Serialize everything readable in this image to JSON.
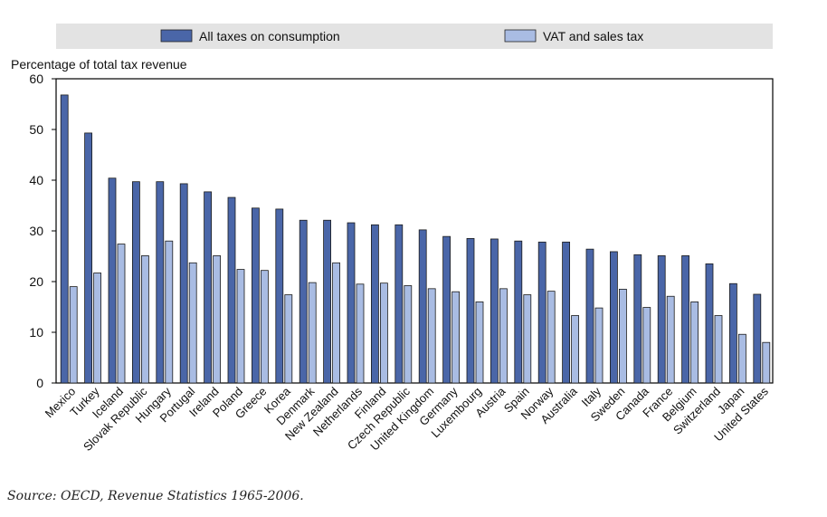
{
  "chart_data": {
    "type": "bar",
    "ylabel": "Percentage of total tax revenue",
    "ylim": [
      0,
      60
    ],
    "yticks": [
      0,
      10,
      20,
      30,
      40,
      50,
      60
    ],
    "grid": false,
    "legend_position": "top",
    "categories": [
      "Mexico",
      "Turkey",
      "Iceland",
      "Slovak Republic",
      "Hungary",
      "Portugal",
      "Ireland",
      "Poland",
      "Greece",
      "Korea",
      "Denmark",
      "New Zealand",
      "Netherlands",
      "Finland",
      "Czech Republic",
      "United Kingdom",
      "Germany",
      "Luxembourg",
      "Austria",
      "Spain",
      "Norway",
      "Australia",
      "Italy",
      "Sweden",
      "Canada",
      "France",
      "Belgium",
      "Switzerland",
      "Japan",
      "United States"
    ],
    "series": [
      {
        "name": "All taxes on consumption",
        "color": "#4a66a8",
        "values": [
          56.8,
          49.3,
          40.4,
          39.7,
          39.7,
          39.3,
          37.7,
          36.6,
          34.5,
          34.3,
          32.1,
          32.1,
          31.6,
          31.2,
          31.2,
          30.2,
          28.9,
          28.5,
          28.4,
          28.0,
          27.8,
          27.8,
          26.4,
          25.9,
          25.3,
          25.1,
          25.1,
          23.5,
          19.6,
          17.5
        ]
      },
      {
        "name": "VAT and sales tax",
        "color": "#a9bce3",
        "values": [
          19.0,
          21.7,
          27.4,
          25.1,
          28.0,
          23.7,
          25.1,
          22.4,
          22.2,
          17.4,
          19.8,
          23.7,
          19.5,
          19.7,
          19.2,
          18.6,
          18.0,
          16.0,
          18.6,
          17.4,
          18.1,
          13.3,
          14.8,
          18.5,
          14.9,
          17.1,
          16.0,
          13.3,
          9.6,
          8.0
        ]
      }
    ]
  },
  "source": {
    "label": "Source: ",
    "text": "OECD, Revenue Statistics 1965-2006."
  }
}
